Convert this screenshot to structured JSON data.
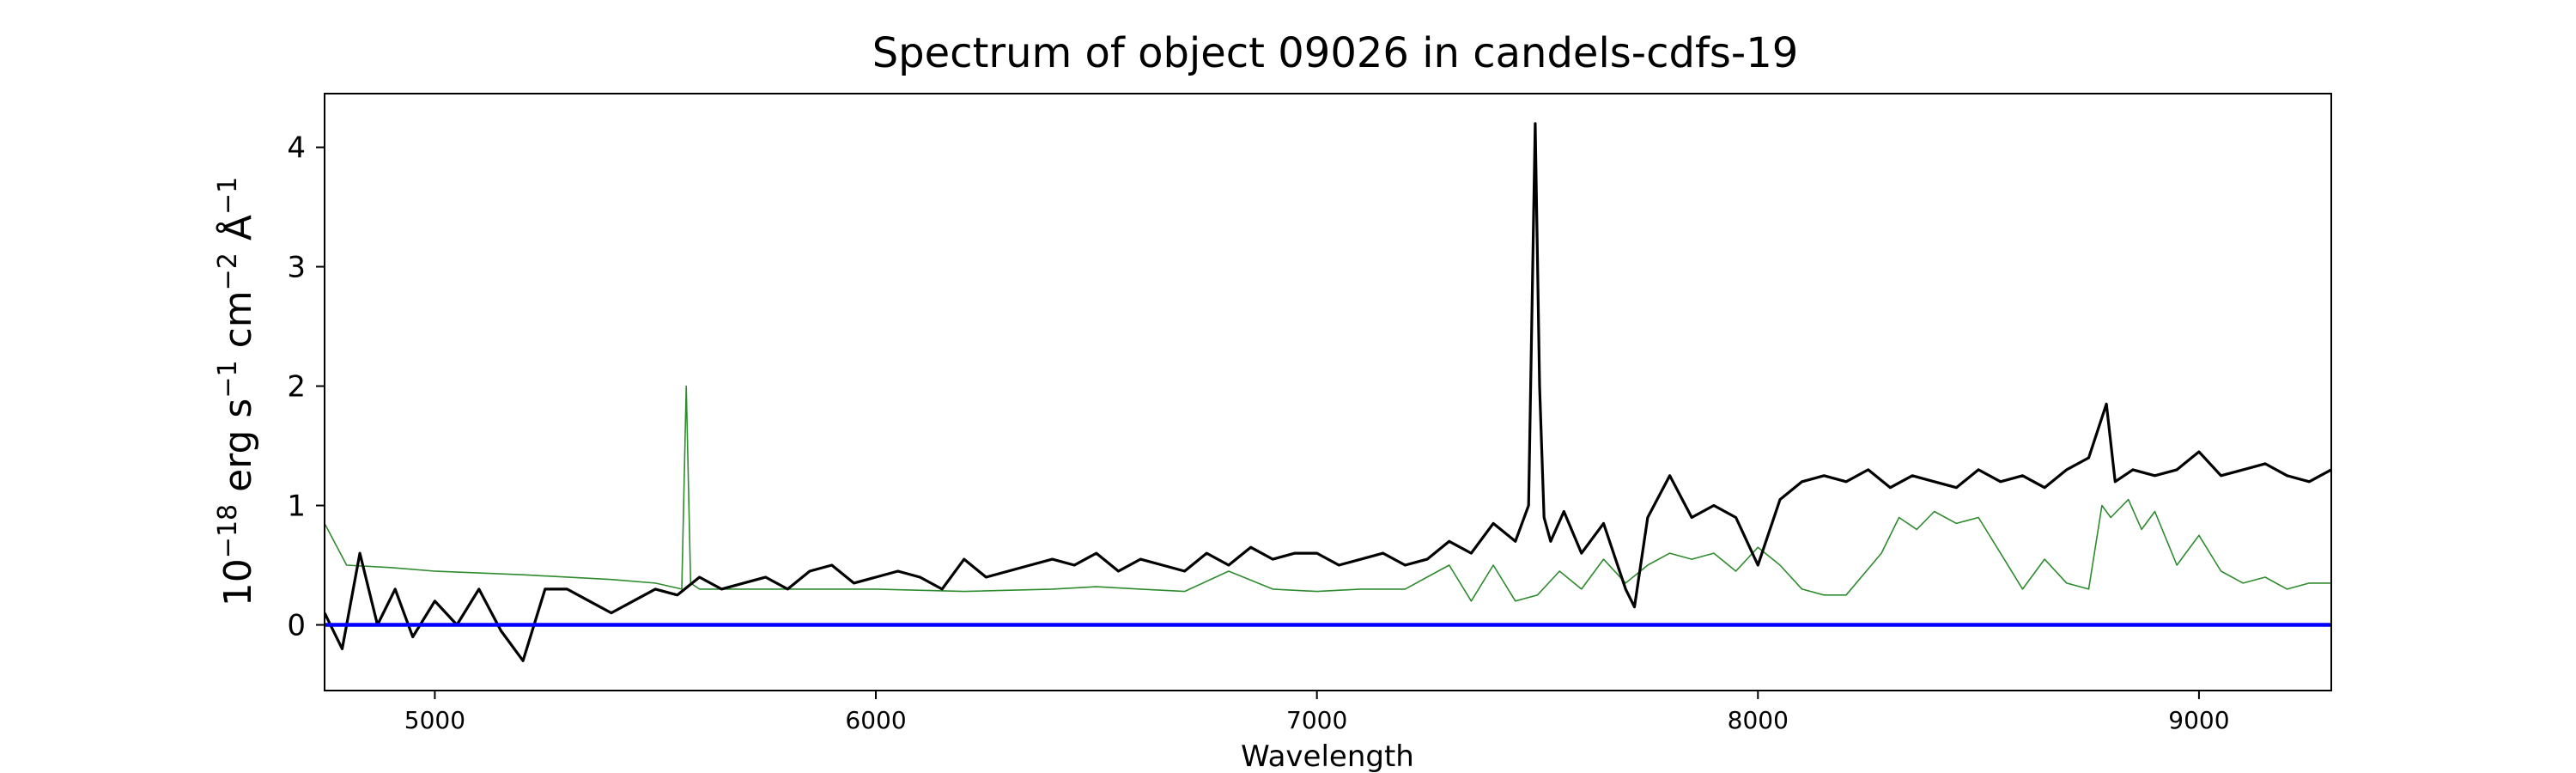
{
  "chart_data": {
    "type": "line",
    "title": "Spectrum of object 09026 in candels-cdfs-19",
    "xlabel": "Wavelength",
    "ylabel_parts": {
      "exp_base": "10",
      "exp_power": "−18",
      "unit_erg": " erg s",
      "unit_s_power": "−1",
      "unit_cm": " cm",
      "unit_cm_power": "−2",
      "unit_A": " Å",
      "unit_A_power": "−1"
    },
    "xlim": [
      4750,
      9300
    ],
    "ylim": [
      -0.55,
      4.45
    ],
    "x_ticks": [
      5000,
      6000,
      7000,
      8000,
      9000
    ],
    "x_tick_labels": [
      "5000",
      "6000",
      "7000",
      "8000",
      "9000"
    ],
    "y_ticks": [
      0,
      1,
      2,
      3,
      4
    ],
    "y_tick_labels": [
      "0",
      "1",
      "2",
      "3",
      "4"
    ],
    "grid": false,
    "colors": {
      "spectrum": "#000000",
      "noise": "#2e8b2e",
      "zero_line": "#0000ff"
    },
    "series": [
      {
        "role": "spectrum",
        "x": [
          4750,
          4790,
          4830,
          4870,
          4910,
          4950,
          5000,
          5050,
          5100,
          5150,
          5200,
          5250,
          5300,
          5350,
          5400,
          5450,
          5500,
          5550,
          5600,
          5650,
          5700,
          5750,
          5800,
          5850,
          5900,
          5950,
          6000,
          6050,
          6100,
          6150,
          6200,
          6250,
          6300,
          6350,
          6400,
          6450,
          6500,
          6550,
          6600,
          6650,
          6700,
          6750,
          6800,
          6850,
          6900,
          6950,
          7000,
          7050,
          7100,
          7150,
          7200,
          7250,
          7300,
          7350,
          7400,
          7450,
          7480,
          7495,
          7505,
          7515,
          7530,
          7560,
          7600,
          7650,
          7700,
          7720,
          7750,
          7800,
          7850,
          7900,
          7950,
          8000,
          8050,
          8100,
          8150,
          8200,
          8250,
          8300,
          8350,
          8400,
          8450,
          8500,
          8550,
          8600,
          8650,
          8700,
          8750,
          8790,
          8810,
          8850,
          8900,
          8950,
          9000,
          9050,
          9100,
          9150,
          9200,
          9250,
          9300
        ],
        "y": [
          0.1,
          -0.2,
          0.6,
          0.0,
          0.3,
          -0.1,
          0.2,
          0.0,
          0.3,
          -0.05,
          -0.3,
          0.3,
          0.3,
          0.2,
          0.1,
          0.2,
          0.3,
          0.25,
          0.4,
          0.3,
          0.35,
          0.4,
          0.3,
          0.45,
          0.5,
          0.35,
          0.4,
          0.45,
          0.4,
          0.3,
          0.55,
          0.4,
          0.45,
          0.5,
          0.55,
          0.5,
          0.6,
          0.45,
          0.55,
          0.5,
          0.45,
          0.6,
          0.5,
          0.65,
          0.55,
          0.6,
          0.6,
          0.5,
          0.55,
          0.6,
          0.5,
          0.55,
          0.7,
          0.6,
          0.85,
          0.7,
          1.0,
          4.2,
          2.0,
          0.9,
          0.7,
          0.95,
          0.6,
          0.85,
          0.3,
          0.15,
          0.9,
          1.25,
          0.9,
          1.0,
          0.9,
          0.5,
          1.05,
          1.2,
          1.25,
          1.2,
          1.3,
          1.15,
          1.25,
          1.2,
          1.15,
          1.3,
          1.2,
          1.25,
          1.15,
          1.3,
          1.4,
          1.85,
          1.2,
          1.3,
          1.25,
          1.3,
          1.45,
          1.25,
          1.3,
          1.35,
          1.25,
          1.2,
          1.3
        ]
      },
      {
        "role": "noise",
        "x": [
          4750,
          4800,
          4900,
          5000,
          5200,
          5400,
          5500,
          5560,
          5570,
          5580,
          5600,
          5800,
          6000,
          6200,
          6400,
          6500,
          6600,
          6700,
          6800,
          6900,
          7000,
          7100,
          7200,
          7300,
          7350,
          7400,
          7450,
          7500,
          7550,
          7600,
          7650,
          7700,
          7750,
          7800,
          7850,
          7900,
          7950,
          8000,
          8050,
          8100,
          8150,
          8200,
          8280,
          8320,
          8360,
          8400,
          8450,
          8500,
          8550,
          8600,
          8650,
          8700,
          8750,
          8780,
          8800,
          8840,
          8870,
          8900,
          8950,
          9000,
          9050,
          9100,
          9150,
          9200,
          9250,
          9300
        ],
        "y": [
          0.85,
          0.5,
          0.48,
          0.45,
          0.42,
          0.38,
          0.35,
          0.3,
          2.0,
          0.35,
          0.3,
          0.3,
          0.3,
          0.28,
          0.3,
          0.32,
          0.3,
          0.28,
          0.45,
          0.3,
          0.28,
          0.3,
          0.3,
          0.5,
          0.2,
          0.5,
          0.2,
          0.25,
          0.45,
          0.3,
          0.55,
          0.35,
          0.5,
          0.6,
          0.55,
          0.6,
          0.45,
          0.65,
          0.5,
          0.3,
          0.25,
          0.25,
          0.6,
          0.9,
          0.8,
          0.95,
          0.85,
          0.9,
          0.6,
          0.3,
          0.55,
          0.35,
          0.3,
          1.0,
          0.9,
          1.05,
          0.8,
          0.95,
          0.5,
          0.75,
          0.45,
          0.35,
          0.4,
          0.3,
          0.35,
          0.35
        ]
      },
      {
        "role": "zero_line",
        "x": [
          4750,
          9300
        ],
        "y": [
          0,
          0
        ]
      }
    ]
  }
}
